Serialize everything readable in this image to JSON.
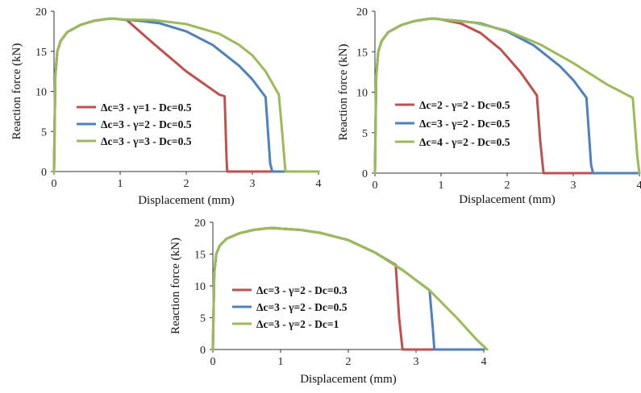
{
  "chart_data": [
    {
      "type": "line",
      "xlabel": "Displacement (mm)",
      "ylabel": "Reaction force (kN)",
      "xlim": [
        0,
        4
      ],
      "ylim": [
        0,
        20
      ],
      "xticks": [
        "0",
        "1",
        "2",
        "3",
        "4"
      ],
      "yticks": [
        "0",
        "5",
        "10",
        "15",
        "20"
      ],
      "grid": false,
      "legend": "left",
      "series": [
        {
          "name": "Δc=3 - γ=1 - Dc=0.5",
          "color": "#c0504d",
          "x": [
            0,
            0.02,
            0.05,
            0.1,
            0.2,
            0.4,
            0.6,
            0.8,
            0.9,
            1.0,
            1.1,
            1.5,
            2.0,
            2.5,
            2.58,
            2.61,
            2.62,
            3.0,
            3.5,
            4.0
          ],
          "y": [
            0,
            12,
            15,
            16.3,
            17.4,
            18.3,
            18.8,
            19.05,
            19.1,
            19.0,
            18.9,
            16.0,
            12.5,
            9.6,
            9.4,
            1.5,
            0,
            0,
            0,
            0
          ]
        },
        {
          "name": "Δc=3 - γ=2 - Dc=0.5",
          "color": "#4f81bd",
          "x": [
            0,
            0.02,
            0.05,
            0.1,
            0.2,
            0.4,
            0.6,
            0.8,
            0.9,
            1.0,
            1.3,
            1.6,
            2.0,
            2.4,
            2.8,
            3.0,
            3.2,
            3.27,
            3.3,
            3.5,
            4.0
          ],
          "y": [
            0,
            12,
            15,
            16.3,
            17.4,
            18.3,
            18.8,
            19.05,
            19.1,
            19.0,
            18.8,
            18.5,
            17.5,
            15.8,
            13.2,
            11.5,
            9.3,
            1.0,
            0,
            0,
            0
          ]
        },
        {
          "name": "Δc=3 - γ=3 - Dc=0.5",
          "color": "#9bbb59",
          "x": [
            0,
            0.02,
            0.05,
            0.1,
            0.2,
            0.4,
            0.6,
            0.8,
            0.9,
            1.0,
            1.5,
            2.0,
            2.5,
            2.8,
            3.0,
            3.2,
            3.4,
            3.45,
            3.5,
            4.0
          ],
          "y": [
            0,
            12,
            15,
            16.3,
            17.4,
            18.3,
            18.8,
            19.05,
            19.1,
            19.0,
            18.9,
            18.4,
            17.2,
            15.8,
            14.5,
            12.5,
            9.6,
            5.0,
            0,
            0
          ]
        }
      ]
    },
    {
      "type": "line",
      "xlabel": "Displacement (mm)",
      "ylabel": "Reaction force (kN)",
      "xlim": [
        0,
        4
      ],
      "ylim": [
        0,
        20
      ],
      "xticks": [
        "0",
        "1",
        "2",
        "3",
        "4"
      ],
      "yticks": [
        "0",
        "5",
        "10",
        "15",
        "20"
      ],
      "grid": false,
      "legend": "left",
      "series": [
        {
          "name": "Δc=2 - γ=2 - Dc=0.5",
          "color": "#c0504d",
          "x": [
            0,
            0.02,
            0.05,
            0.1,
            0.2,
            0.4,
            0.6,
            0.8,
            0.9,
            1.0,
            1.3,
            1.6,
            1.9,
            2.2,
            2.45,
            2.5,
            2.55,
            3.0,
            3.5,
            4.0
          ],
          "y": [
            0,
            12,
            15,
            16.3,
            17.4,
            18.3,
            18.8,
            19.05,
            19.1,
            19.0,
            18.5,
            17.3,
            15.3,
            12.5,
            9.6,
            4.0,
            0,
            0,
            0,
            0
          ]
        },
        {
          "name": "Δc=3 - γ=2 - Dc=0.5",
          "color": "#4f81bd",
          "x": [
            0,
            0.02,
            0.05,
            0.1,
            0.2,
            0.4,
            0.6,
            0.8,
            0.9,
            1.0,
            1.3,
            1.6,
            2.0,
            2.4,
            2.8,
            3.0,
            3.2,
            3.27,
            3.3,
            3.5,
            4.0
          ],
          "y": [
            0,
            12,
            15,
            16.3,
            17.4,
            18.3,
            18.8,
            19.05,
            19.1,
            19.0,
            18.8,
            18.5,
            17.5,
            15.8,
            13.2,
            11.5,
            9.3,
            1.0,
            0,
            0,
            0
          ]
        },
        {
          "name": "Δc=4 - γ=2 - Dc=0.5",
          "color": "#9bbb59",
          "x": [
            0,
            0.02,
            0.05,
            0.1,
            0.2,
            0.4,
            0.6,
            0.8,
            0.9,
            1.0,
            1.5,
            2.0,
            2.5,
            3.0,
            3.5,
            3.9,
            3.97,
            4.0
          ],
          "y": [
            0,
            12,
            15,
            16.3,
            17.4,
            18.3,
            18.8,
            19.05,
            19.1,
            19.0,
            18.6,
            17.6,
            15.9,
            13.6,
            11.0,
            9.3,
            2.0,
            0
          ]
        }
      ]
    },
    {
      "type": "line",
      "xlabel": "Displacement (mm)",
      "ylabel": "Reaction force (kN)",
      "xlim": [
        0,
        4
      ],
      "ylim": [
        0,
        20
      ],
      "xticks": [
        "0",
        "1",
        "2",
        "3",
        "4"
      ],
      "yticks": [
        "0",
        "5",
        "10",
        "15",
        "20"
      ],
      "grid": false,
      "legend": "left",
      "series": [
        {
          "name": "Δc=3 - γ=2 - Dc=0.3",
          "color": "#c0504d",
          "x": [
            0,
            0.02,
            0.05,
            0.1,
            0.2,
            0.4,
            0.6,
            0.8,
            0.9,
            1.0,
            1.3,
            1.6,
            2.0,
            2.4,
            2.7,
            2.75,
            2.8,
            3.0,
            3.5,
            4.0
          ],
          "y": [
            0,
            12,
            15,
            16.3,
            17.4,
            18.3,
            18.8,
            19.05,
            19.1,
            19.0,
            18.8,
            18.3,
            17.2,
            15.2,
            13.3,
            5.0,
            0,
            0,
            0,
            0
          ]
        },
        {
          "name": "Δc=3 - γ=2 - Dc=0.5",
          "color": "#4f81bd",
          "x": [
            0,
            0.02,
            0.05,
            0.1,
            0.2,
            0.4,
            0.6,
            0.8,
            0.9,
            1.0,
            1.3,
            1.6,
            2.0,
            2.4,
            2.8,
            3.0,
            3.2,
            3.25,
            3.27,
            3.5,
            4.0
          ],
          "y": [
            0,
            12,
            15,
            16.3,
            17.4,
            18.3,
            18.8,
            19.05,
            19.1,
            19.0,
            18.8,
            18.3,
            17.2,
            15.2,
            12.5,
            10.9,
            9.3,
            3.0,
            0,
            0,
            0
          ]
        },
        {
          "name": "Δc=3 - γ=2 - Dc=1",
          "color": "#9bbb59",
          "x": [
            0,
            0.02,
            0.05,
            0.1,
            0.2,
            0.4,
            0.6,
            0.8,
            0.9,
            1.0,
            1.3,
            1.6,
            2.0,
            2.4,
            2.8,
            3.2,
            3.6,
            3.9,
            4.05
          ],
          "y": [
            0,
            12,
            15,
            16.3,
            17.4,
            18.3,
            18.8,
            19.05,
            19.1,
            19.0,
            18.8,
            18.3,
            17.2,
            15.2,
            12.5,
            9.3,
            5.0,
            1.5,
            0
          ]
        }
      ]
    }
  ]
}
